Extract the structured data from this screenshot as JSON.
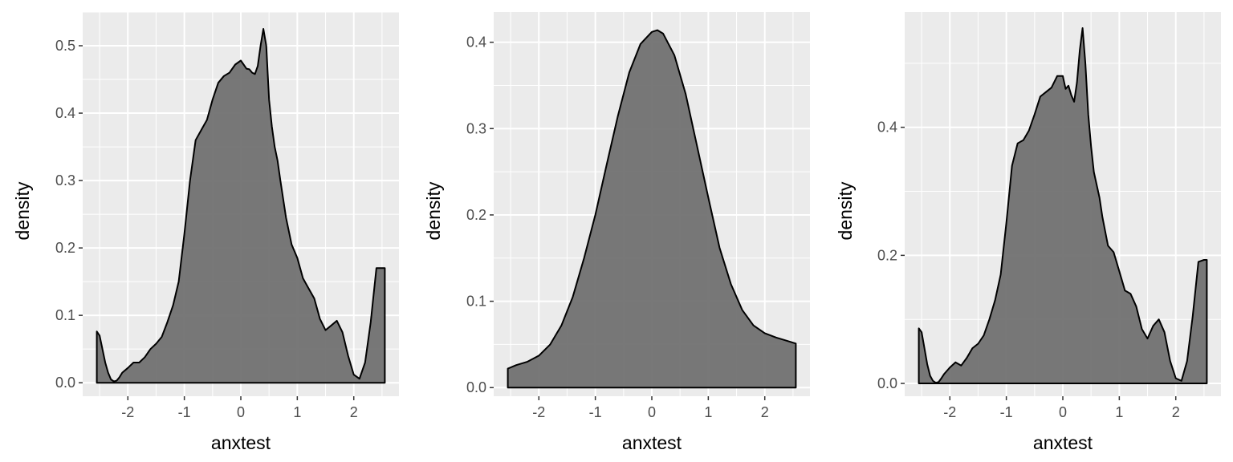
{
  "chart_data": [
    {
      "type": "area",
      "xlabel": "anxtest",
      "ylabel": "density",
      "xlim": [
        -2.8,
        2.8
      ],
      "ylim": [
        -0.02,
        0.55
      ],
      "x_ticks": [
        -2,
        -1,
        0,
        1,
        2
      ],
      "x_tick_labels": [
        "-2",
        "-1",
        "0",
        "1",
        "2"
      ],
      "y_ticks": [
        0.0,
        0.1,
        0.2,
        0.3,
        0.4,
        0.5
      ],
      "y_tick_labels": [
        "0.0",
        "0.1",
        "0.2",
        "0.3",
        "0.4",
        "0.5"
      ],
      "grid": true,
      "fill_color": "#717171",
      "x": [
        -2.55,
        -2.5,
        -2.45,
        -2.4,
        -2.35,
        -2.3,
        -2.25,
        -2.2,
        -2.15,
        -2.1,
        -2.0,
        -1.9,
        -1.8,
        -1.7,
        -1.6,
        -1.5,
        -1.4,
        -1.3,
        -1.2,
        -1.1,
        -1.0,
        -0.9,
        -0.8,
        -0.7,
        -0.6,
        -0.5,
        -0.4,
        -0.3,
        -0.2,
        -0.1,
        0.0,
        0.05,
        0.1,
        0.15,
        0.2,
        0.25,
        0.3,
        0.35,
        0.4,
        0.45,
        0.5,
        0.55,
        0.6,
        0.65,
        0.7,
        0.8,
        0.9,
        1.0,
        1.1,
        1.2,
        1.3,
        1.4,
        1.5,
        1.6,
        1.7,
        1.8,
        1.9,
        2.0,
        2.1,
        2.2,
        2.3,
        2.4,
        2.5,
        2.55
      ],
      "y": [
        0.076,
        0.07,
        0.05,
        0.03,
        0.015,
        0.005,
        0.002,
        0.003,
        0.008,
        0.015,
        0.022,
        0.03,
        0.03,
        0.038,
        0.05,
        0.058,
        0.068,
        0.09,
        0.115,
        0.15,
        0.22,
        0.3,
        0.36,
        0.375,
        0.39,
        0.42,
        0.445,
        0.455,
        0.46,
        0.472,
        0.478,
        0.472,
        0.466,
        0.465,
        0.46,
        0.458,
        0.47,
        0.5,
        0.525,
        0.5,
        0.42,
        0.38,
        0.35,
        0.33,
        0.3,
        0.245,
        0.205,
        0.185,
        0.155,
        0.14,
        0.125,
        0.095,
        0.078,
        0.085,
        0.092,
        0.075,
        0.04,
        0.012,
        0.006,
        0.03,
        0.09,
        0.17,
        0.17,
        0.17
      ]
    },
    {
      "type": "area",
      "xlabel": "anxtest",
      "ylabel": "density",
      "xlim": [
        -2.8,
        2.8
      ],
      "ylim": [
        -0.01,
        0.435
      ],
      "x_ticks": [
        -2,
        -1,
        0,
        1,
        2
      ],
      "x_tick_labels": [
        "-2",
        "-1",
        "0",
        "1",
        "2"
      ],
      "y_ticks": [
        0.0,
        0.1,
        0.2,
        0.3,
        0.4
      ],
      "y_tick_labels": [
        "0.0",
        "0.1",
        "0.2",
        "0.3",
        "0.4"
      ],
      "grid": true,
      "fill_color": "#717171",
      "x": [
        -2.55,
        -2.4,
        -2.2,
        -2.0,
        -1.8,
        -1.6,
        -1.4,
        -1.2,
        -1.0,
        -0.8,
        -0.6,
        -0.4,
        -0.2,
        0.0,
        0.1,
        0.2,
        0.4,
        0.6,
        0.8,
        1.0,
        1.2,
        1.4,
        1.6,
        1.8,
        2.0,
        2.2,
        2.4,
        2.55
      ],
      "y": [
        0.022,
        0.026,
        0.03,
        0.037,
        0.05,
        0.072,
        0.105,
        0.15,
        0.2,
        0.258,
        0.315,
        0.365,
        0.398,
        0.412,
        0.414,
        0.41,
        0.385,
        0.34,
        0.28,
        0.22,
        0.162,
        0.12,
        0.09,
        0.072,
        0.063,
        0.058,
        0.054,
        0.051
      ]
    },
    {
      "type": "area",
      "xlabel": "anxtest",
      "ylabel": "density",
      "xlim": [
        -2.8,
        2.8
      ],
      "ylim": [
        -0.02,
        0.58
      ],
      "x_ticks": [
        -2,
        -1,
        0,
        1,
        2
      ],
      "x_tick_labels": [
        "-2",
        "-1",
        "0",
        "1",
        "2"
      ],
      "y_ticks": [
        0.0,
        0.2,
        0.4
      ],
      "y_tick_labels": [
        "0.0",
        "0.2",
        "0.4"
      ],
      "grid": true,
      "fill_color": "#717171",
      "x": [
        -2.55,
        -2.5,
        -2.45,
        -2.4,
        -2.35,
        -2.3,
        -2.25,
        -2.2,
        -2.15,
        -2.1,
        -2.0,
        -1.9,
        -1.8,
        -1.7,
        -1.6,
        -1.5,
        -1.4,
        -1.3,
        -1.2,
        -1.1,
        -1.0,
        -0.9,
        -0.8,
        -0.7,
        -0.6,
        -0.5,
        -0.4,
        -0.3,
        -0.2,
        -0.1,
        0.0,
        0.05,
        0.1,
        0.15,
        0.2,
        0.25,
        0.3,
        0.35,
        0.4,
        0.45,
        0.5,
        0.55,
        0.6,
        0.65,
        0.7,
        0.8,
        0.9,
        1.0,
        1.1,
        1.2,
        1.3,
        1.4,
        1.5,
        1.6,
        1.7,
        1.8,
        1.9,
        2.0,
        2.1,
        2.2,
        2.3,
        2.4,
        2.5,
        2.55
      ],
      "y": [
        0.086,
        0.08,
        0.055,
        0.03,
        0.012,
        0.004,
        0.001,
        0.002,
        0.008,
        0.015,
        0.025,
        0.033,
        0.028,
        0.04,
        0.055,
        0.062,
        0.075,
        0.1,
        0.13,
        0.17,
        0.25,
        0.34,
        0.375,
        0.38,
        0.395,
        0.42,
        0.448,
        0.455,
        0.462,
        0.48,
        0.48,
        0.46,
        0.465,
        0.45,
        0.44,
        0.47,
        0.52,
        0.555,
        0.5,
        0.42,
        0.37,
        0.33,
        0.31,
        0.29,
        0.26,
        0.215,
        0.205,
        0.175,
        0.145,
        0.14,
        0.12,
        0.085,
        0.07,
        0.09,
        0.1,
        0.08,
        0.035,
        0.008,
        0.004,
        0.035,
        0.105,
        0.19,
        0.193,
        0.193
      ]
    }
  ]
}
